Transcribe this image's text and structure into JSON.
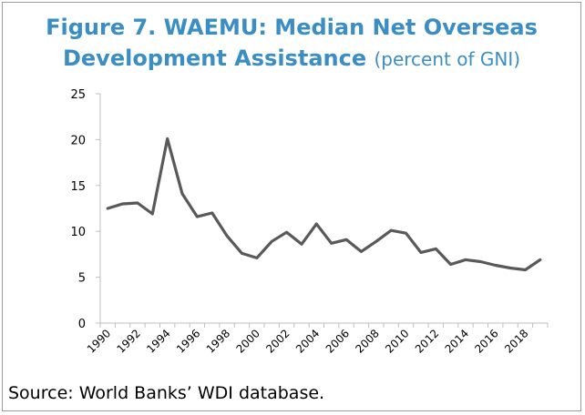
{
  "title": {
    "line1": "Figure 7. WAEMU: Median Net Overseas",
    "line2_bold": "Development Assistance",
    "line2_sub": "(percent of GNI)"
  },
  "source": "Source: World Banks’ WDI database.",
  "colors": {
    "title": "#3a8ec3",
    "line": "#595959",
    "axis": "#bfbfbf"
  },
  "chart_data": {
    "type": "line",
    "title": "Figure 7. WAEMU: Median Net Overseas Development Assistance (percent of GNI)",
    "xlabel": "",
    "ylabel": "",
    "ylim": [
      0,
      25
    ],
    "yticks": [
      0,
      5,
      10,
      15,
      20,
      25
    ],
    "xtick_labels": [
      "1990",
      "1992",
      "1994",
      "1996",
      "1998",
      "2000",
      "2002",
      "2004",
      "2006",
      "2008",
      "2010",
      "2012",
      "2014",
      "2016",
      "2018"
    ],
    "grid": false,
    "legend": "none",
    "x": [
      1990,
      1991,
      1992,
      1993,
      1994,
      1995,
      1996,
      1997,
      1998,
      1999,
      2000,
      2001,
      2002,
      2003,
      2004,
      2005,
      2006,
      2007,
      2008,
      2009,
      2010,
      2011,
      2012,
      2013,
      2014,
      2015,
      2016,
      2017,
      2018,
      2019
    ],
    "series": [
      {
        "values": [
          12.5,
          13.0,
          13.1,
          11.9,
          20.1,
          14.1,
          11.6,
          12.0,
          9.5,
          7.6,
          7.1,
          8.9,
          9.9,
          8.6,
          10.8,
          8.7,
          9.1,
          7.8,
          8.9,
          10.1,
          9.8,
          7.7,
          8.1,
          6.4,
          6.9,
          6.7,
          6.3,
          6.0,
          5.8,
          6.9
        ]
      }
    ]
  }
}
